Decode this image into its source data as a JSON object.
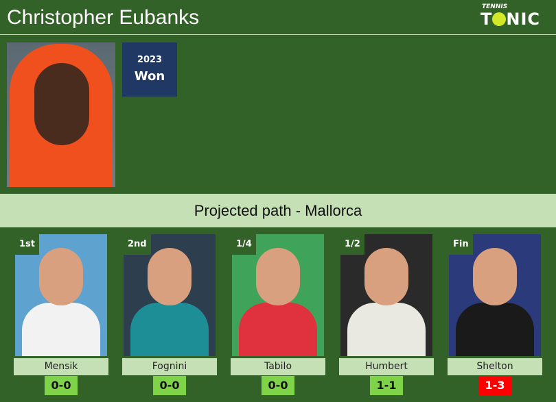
{
  "header": {
    "title": "Christopher Eubanks",
    "logo_top": "TENNIS",
    "logo_main": "TONIC"
  },
  "player": {
    "year": "2023",
    "result": "Won"
  },
  "banner": "Projected path - Mallorca",
  "path": [
    {
      "round": "1st",
      "name": "Mensik",
      "score": "0-0",
      "bg": "#5ea3d0",
      "shirt": "#f2f2f2"
    },
    {
      "round": "2nd",
      "name": "Fognini",
      "score": "0-0",
      "bg": "#2d3f4e",
      "shirt": "#1e8e96"
    },
    {
      "round": "1/4",
      "name": "Tabilo",
      "score": "0-0",
      "bg": "#3fa35a",
      "shirt": "#e0313f"
    },
    {
      "round": "1/2",
      "name": "Humbert",
      "score": "1-1",
      "bg": "#2a2a2a",
      "shirt": "#e9e9e2"
    },
    {
      "round": "Fin",
      "name": "Shelton",
      "score": "1-3",
      "bg": "#2a3a7a",
      "shirt": "#1a1a1a",
      "loss": true
    }
  ]
}
